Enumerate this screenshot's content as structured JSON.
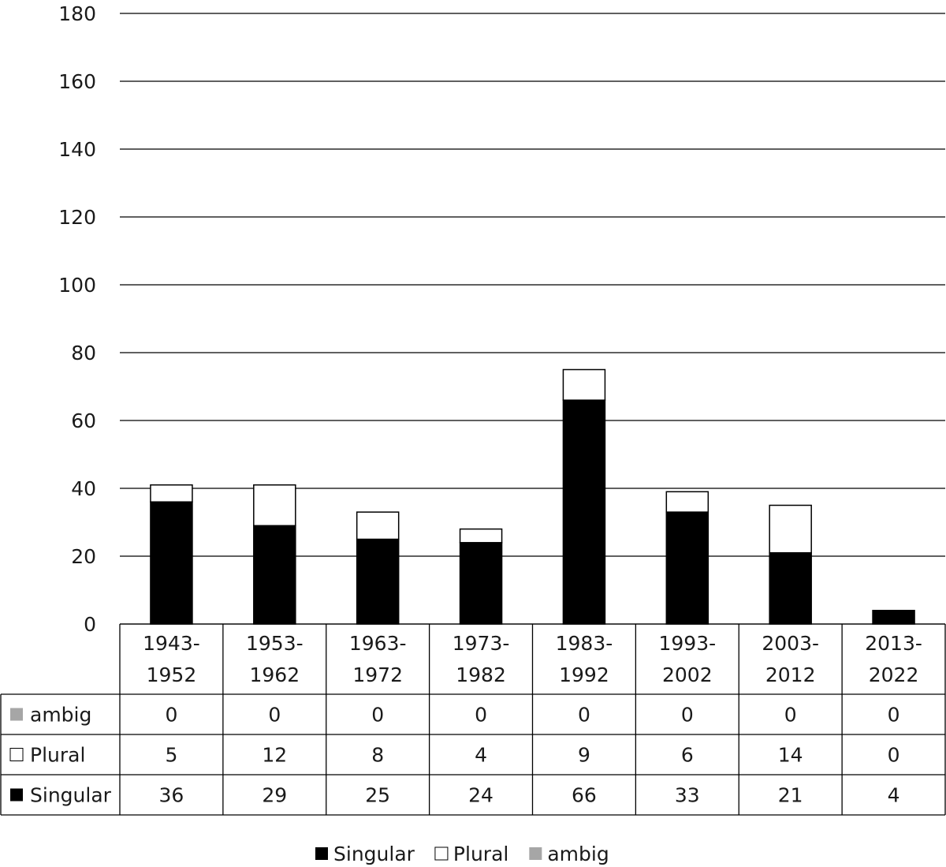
{
  "chart_data": {
    "type": "bar",
    "stacked": true,
    "title": "",
    "xlabel": "",
    "ylabel": "",
    "ylim": [
      0,
      180
    ],
    "yticks": [
      0,
      20,
      40,
      60,
      80,
      100,
      120,
      140,
      160,
      180
    ],
    "grid": true,
    "legend_position": "bottom",
    "data_table": true,
    "categories": [
      [
        "1943-",
        "1952"
      ],
      [
        "1953-",
        "1962"
      ],
      [
        "1963-",
        "1972"
      ],
      [
        "1973-",
        "1982"
      ],
      [
        "1983-",
        "1992"
      ],
      [
        "1993-",
        "2002"
      ],
      [
        "2003-",
        "2012"
      ],
      [
        "2013-",
        "2022"
      ]
    ],
    "series": [
      {
        "name": "Singular",
        "color": "#000000",
        "values": [
          36,
          29,
          25,
          24,
          66,
          33,
          21,
          4
        ]
      },
      {
        "name": "Plural",
        "color": "#ffffff",
        "values": [
          5,
          12,
          8,
          4,
          9,
          6,
          14,
          0
        ]
      },
      {
        "name": "ambig",
        "color": "#a6a6a6",
        "values": [
          0,
          0,
          0,
          0,
          0,
          0,
          0,
          0
        ]
      }
    ],
    "table_row_order": [
      "ambig",
      "Plural",
      "Singular"
    ]
  }
}
